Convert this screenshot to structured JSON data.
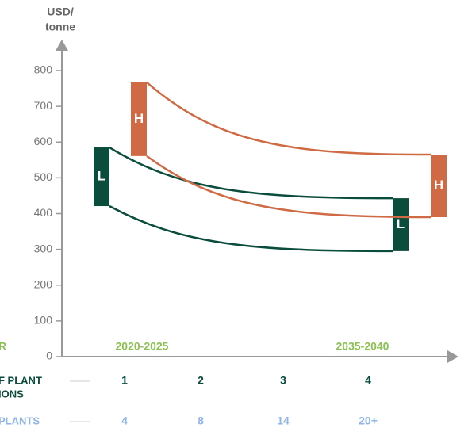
{
  "chart_data": {
    "type": "range-band",
    "y_label": [
      "USD/",
      "tonne"
    ],
    "ylim": [
      0,
      800
    ],
    "yticks": [
      0,
      100,
      200,
      300,
      400,
      500,
      600,
      700,
      800
    ],
    "bands": [
      {
        "name": "L",
        "color": "#0b4d3c",
        "start": [
          421,
          585
        ],
        "end": [
          295,
          443
        ]
      },
      {
        "name": "H",
        "color": "#d06a44",
        "start": [
          561,
          767
        ],
        "end": [
          390,
          565
        ]
      }
    ],
    "axis_row_label": "R",
    "periods": [
      "2020-2025",
      "2035-2040"
    ],
    "rows": [
      {
        "label": [
          "F PLANT",
          "IONS"
        ],
        "color": "#0b4d3c",
        "values": [
          "1",
          "2",
          "3",
          "4"
        ]
      },
      {
        "label": [
          "PLANTS"
        ],
        "color": "#8fb4e8",
        "values": [
          "4",
          "8",
          "14",
          "20+"
        ]
      }
    ]
  }
}
